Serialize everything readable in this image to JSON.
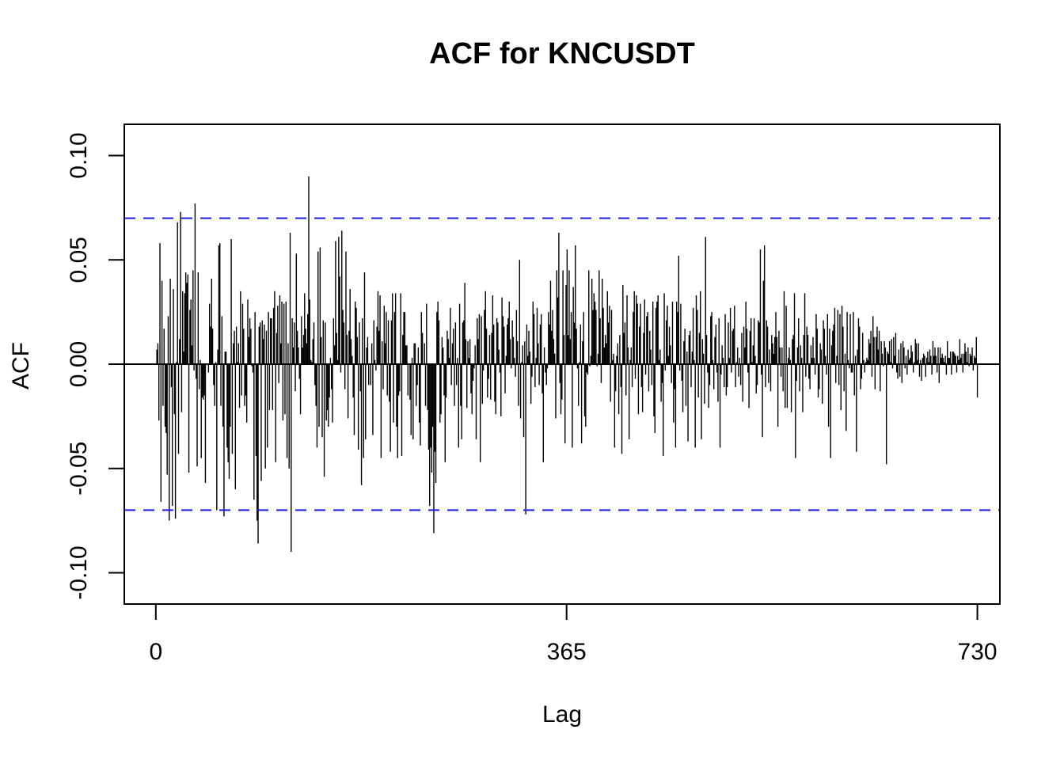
{
  "chart_data": {
    "type": "bar",
    "subtype": "acf",
    "title": "ACF for KNCUSDT",
    "xlabel": "Lag",
    "ylabel": "ACF",
    "xlim": [
      -28,
      750
    ],
    "ylim": [
      -0.115,
      0.115
    ],
    "x_ticks": [
      {
        "value": 0,
        "label": "0"
      },
      {
        "value": 365,
        "label": "365"
      },
      {
        "value": 730,
        "label": "730"
      }
    ],
    "y_ticks": [
      {
        "value": -0.1,
        "label": "-0.10"
      },
      {
        "value": -0.05,
        "label": "-0.05"
      },
      {
        "value": 0.0,
        "label": "0.00"
      },
      {
        "value": 0.05,
        "label": "0.05"
      },
      {
        "value": 0.1,
        "label": "0.10"
      }
    ],
    "confidence_bound": 0.07,
    "grid": false,
    "legend": "none",
    "max_lag": 730,
    "acf": [
      0.0,
      0.007,
      0.01,
      -0.027,
      0.058,
      -0.066,
      0.04,
      -0.02,
      0.017,
      -0.03,
      -0.033,
      -0.053,
      0.023,
      -0.075,
      0.041,
      -0.011,
      -0.068,
      0.036,
      -0.024,
      -0.074,
      0.001,
      0.068,
      -0.043,
      0.012,
      0.073,
      -0.023,
      0.035,
      0.006,
      0.034,
      0.044,
      0.039,
      0.043,
      -0.052,
      0.026,
      0.031,
      0.009,
      0.045,
      -0.003,
      0.077,
      -0.007,
      -0.049,
      0.044,
      -0.012,
      0.002,
      -0.045,
      -0.016,
      -0.017,
      -0.015,
      -0.057,
      0.0,
      0.0,
      -0.004,
      0.029,
      0.018,
      0.041,
      0.017,
      -0.01,
      -0.02,
      0.001,
      -0.07,
      0.007,
      0.057,
      0.058,
      -0.02,
      0.023,
      -0.03,
      -0.073,
      0.006,
      0.006,
      -0.04,
      -0.047,
      -0.055,
      -0.03,
      0.06,
      -0.043,
      0.01,
      0.016,
      -0.06,
      0.018,
      0.001,
      0.01,
      -0.021,
      0.035,
      -0.015,
      0.029,
      0.017,
      -0.02,
      -0.015,
      -0.028,
      0.031,
      0.013,
      0.022,
      0.017,
      -0.001,
      -0.004,
      -0.065,
      0.025,
      -0.044,
      -0.075,
      -0.086,
      0.018,
      0.02,
      -0.056,
      0.021,
      0.012,
      0.019,
      -0.05,
      0.016,
      -0.04,
      0.025,
      -0.022,
      0.022,
      0.022,
      -0.022,
      0.027,
      0.035,
      -0.047,
      0.015,
      0.028,
      -0.009,
      0.033,
      0.01,
      0.03,
      -0.027,
      0.029,
      -0.024,
      0.03,
      -0.045,
      0.01,
      -0.05,
      0.063,
      -0.09,
      0.022,
      0.008,
      0.02,
      -0.013,
      0.053,
      0.016,
      0.008,
      -0.007,
      -0.024,
      0.023,
      0.008,
      0.014,
      0.034,
      0.017,
      0.01,
      0.024,
      0.09,
      0.031,
      0.002,
      0.001,
      0.012,
      0.02,
      -0.01,
      -0.02,
      -0.04,
      0.054,
      -0.03,
      0.056,
      0.013,
      -0.035,
      0.021,
      -0.054,
      0.02,
      -0.027,
      -0.022,
      -0.03,
      -0.016,
      0.003,
      -0.012,
      -0.028,
      0.022,
      0.009,
      0.059,
      0.015,
      0.002,
      0.061,
      0.042,
      -0.004,
      0.064,
      0.026,
      0.02,
      -0.012,
      0.054,
      0.014,
      -0.026,
      0.016,
      0.036,
      0.012,
      0.004,
      -0.016,
      -0.034,
      0.03,
      0.027,
      0.013,
      -0.041,
      0.02,
      -0.013,
      -0.058,
      0.022,
      -0.045,
      0.044,
      -0.036,
      0.008,
      0.013,
      -0.01,
      0.0,
      -0.01,
      0.01,
      -0.034,
      0.021,
      0.002,
      -0.003,
      0.018,
      0.035,
      0.016,
      0.033,
      -0.045,
      0.011,
      -0.012,
      0.028,
      0.01,
      0.025,
      -0.015,
      0.021,
      -0.018,
      -0.042,
      0.021,
      0.034,
      -0.028,
      0.025,
      0.034,
      -0.03,
      -0.045,
      -0.015,
      -0.013,
      0.034,
      -0.044,
      0.014,
      0.025,
      0.025,
      0.009,
      0.009,
      -0.015,
      0.0,
      -0.017,
      -0.034,
      0.003,
      -0.036,
      0.01,
      0.01,
      -0.02,
      -0.01,
      0.008,
      -0.028,
      -0.039,
      0.025,
      0.015,
      0.0,
      0.01,
      -0.02,
      0.029,
      -0.022,
      -0.041,
      -0.068,
      -0.04,
      -0.052,
      -0.03,
      -0.081,
      -0.042,
      -0.057,
      0.025,
      0.03,
      0.021,
      -0.028,
      -0.024,
      0.013,
      0.008,
      -0.015,
      -0.047,
      -0.016,
      0.016,
      0.012,
      0.003,
      0.027,
      -0.01,
      0.01,
      0.017,
      -0.02,
      0.02,
      -0.01,
      0.003,
      -0.04,
      0.029,
      -0.02,
      -0.036,
      0.02,
      0.021,
      0.039,
      0.012,
      -0.021,
      0.011,
      0.003,
      0.012,
      -0.014,
      -0.024,
      -0.008,
      -0.002,
      0.009,
      -0.036,
      0.022,
      0.012,
      0.024,
      -0.047,
      0.023,
      -0.019,
      -0.003,
      0.026,
      0.035,
      0.017,
      -0.016,
      -0.007,
      0.014,
      -0.017,
      0.015,
      0.033,
      0.019,
      -0.018,
      -0.024,
      0.022,
      0.02,
      0.007,
      -0.004,
      -0.025,
      0.032,
      0.023,
      0.018,
      -0.014,
      0.004,
      0.019,
      0.022,
      0.03,
      0.012,
      -0.002,
      0.021,
      0.013,
      0.003,
      -0.006,
      0.026,
      0.011,
      -0.02,
      0.05,
      -0.026,
      0.001,
      0.009,
      -0.035,
      0.011,
      -0.072,
      0.019,
      0.004,
      0.016,
      0.006,
      -0.019,
      -0.006,
      0.03,
      0.024,
      -0.011,
      0.003,
      0.027,
      0.01,
      -0.01,
      0.019,
      0.024,
      -0.014,
      -0.047,
      0.008,
      -0.004,
      -0.01,
      -0.002,
      0.025,
      0.019,
      0.04,
      0.016,
      0.026,
      0.012,
      0.005,
      -0.026,
      0.045,
      0.032,
      0.063,
      -0.009,
      -0.024,
      -0.017,
      0.045,
      0.014,
      -0.038,
      0.038,
      0.055,
      0.014,
      0.045,
      0.012,
      0.025,
      -0.04,
      0.037,
      0.02,
      0.057,
      0.017,
      -0.002,
      -0.02,
      0.001,
      0.019,
      -0.038,
      0.011,
      0.025,
      -0.025,
      -0.03,
      -0.004,
      -0.005,
      0.045,
      -0.001,
      0.004,
      0.041,
      0.026,
      0.034,
      0.03,
      0.026,
      -0.001,
      0.005,
      0.045,
      0.022,
      -0.009,
      0.041,
      0.027,
      0.008,
      0.014,
      0.01,
      0.035,
      0.02,
      0.028,
      -0.018,
      0.026,
      0.002,
      0.005,
      -0.04,
      -0.013,
      0.004,
      0.01,
      -0.024,
      0.014,
      -0.011,
      -0.043,
      0.038,
      0.015,
      0.02,
      -0.015,
      0.033,
      0.008,
      -0.036,
      0.002,
      0.008,
      -0.011,
      0.025,
      0.035,
      -0.007,
      0.033,
      0.029,
      -0.024,
      0.018,
      0.029,
      -0.011,
      -0.023,
      0.015,
      0.031,
      -0.005,
      0.023,
      0.025,
      -0.013,
      0.016,
      0.007,
      -0.01,
      0.03,
      -0.025,
      -0.033,
      0.027,
      0.03,
      0.033,
      0.002,
      0.007,
      -0.018,
      -0.009,
      -0.044,
      0.034,
      -0.003,
      0.021,
      0.028,
      0.004,
      0.018,
      0.009,
      -0.009,
      0.03,
      -0.028,
      -0.012,
      -0.04,
      0.03,
      0.025,
      0.052,
      -0.003,
      0.029,
      -0.008,
      -0.023,
      0.011,
      0.017,
      -0.02,
      0.006,
      -0.037,
      0.014,
      0.016,
      -0.011,
      0.006,
      0.027,
      0.002,
      -0.04,
      0.033,
      0.026,
      -0.016,
      0.015,
      0.035,
      -0.036,
      0.012,
      0.005,
      -0.019,
      0.061,
      0.014,
      -0.004,
      -0.021,
      -0.01,
      0.023,
      0.025,
      0.002,
      -0.012,
      0.013,
      0.019,
      -0.004,
      -0.018,
      0.022,
      -0.04,
      -0.005,
      0.009,
      0.003,
      -0.011,
      0.024,
      -0.015,
      -0.011,
      0.02,
      0.003,
      0.027,
      -0.004,
      0.016,
      0.017,
      0.028,
      -0.011,
      0.001,
      0.008,
      -0.006,
      0.003,
      -0.01,
      0.015,
      -0.018,
      0.018,
      0.008,
      0.03,
      0.017,
      -0.004,
      -0.021,
      0.016,
      0.022,
      0.001,
      0.009,
      0.022,
      0.004,
      -0.014,
      -0.01,
      0.021,
      0.02,
      0.055,
      -0.005,
      -0.035,
      0.04,
      0.057,
      -0.011,
      0.021,
      0.018,
      -0.009,
      0.007,
      -0.013,
      0.014,
      0.01,
      0.005,
      0.013,
      0.025,
      0.013,
      -0.03,
      0.016,
      0.008,
      -0.006,
      0.008,
      -0.013,
      0.035,
      -0.021,
      0.028,
      -0.021,
      0.003,
      0.008,
      0.002,
      -0.023,
      0.012,
      0.014,
      0.034,
      -0.045,
      -0.008,
      0.008,
      0.022,
      -0.013,
      0.009,
      0.003,
      -0.023,
      0.014,
      0.034,
      -0.006,
      0.018,
      0.014,
      -0.007,
      -0.012,
      0.009,
      0.003,
      0.013,
      0.003,
      -0.005,
      0.024,
      0.017,
      -0.016,
      -0.012,
      0.01,
      0.007,
      -0.019,
      0.021,
      0.017,
      0.004,
      -0.005,
      0.024,
      -0.03,
      0.017,
      -0.045,
      0.009,
      0.016,
      0.019,
      0.027,
      -0.009,
      0.004,
      0.026,
      -0.01,
      0.024,
      -0.022,
      0.028,
      0.018,
      -0.013,
      0.005,
      -0.032,
      0.025,
      0.002,
      -0.002,
      0.024,
      -0.004,
      -0.004,
      0.025,
      -0.015,
      0.004,
      -0.042,
      0.007,
      0.022,
      0.018,
      -0.012,
      -0.007,
      0.015,
      0.002,
      -0.004,
      0.001,
      0.003,
      0.002,
      0.012,
      0.01,
      0.016,
      -0.006,
      0.023,
      0.013,
      -0.012,
      0.013,
      0.018,
      0.007,
      0.016,
      -0.013,
      0.011,
      0.005,
      -0.001,
      0.011,
      0.008,
      -0.048,
      0.006,
      0.005,
      0.011,
      0.001,
      0.012,
      -0.002,
      0.013,
      0.004,
      0.015,
      -0.004,
      -0.007,
      0.007,
      -0.006,
      0.01,
      -0.009,
      0.011,
      0.008,
      -0.002,
      0.004,
      -0.005,
      0.007,
      0.002,
      0.003,
      0.009,
      0.006,
      -0.004,
      0.001,
      0.012,
      0.01,
      0.002,
      0.01,
      -0.006,
      0.002,
      -0.008,
      0.003,
      0.005,
      0.004,
      -0.006,
      0.003,
      0.006,
      0.001,
      0.007,
      0.004,
      -0.005,
      0.011,
      0.004,
      0.008,
      0.004,
      -0.004,
      0.008,
      -0.009,
      0.008,
      0.003,
      0.005,
      0.003,
      0.001,
      0.004,
      -0.005,
      0.011,
      0.003,
      0.003,
      0.006,
      -0.005,
      0.006,
      0.006,
      0.005,
      0.004,
      -0.004,
      0.004,
      0.002,
      0.012,
      0.003,
      0.005,
      -0.004,
      0.005,
      0.01,
      0.006,
      0.001,
      0.008,
      -0.001,
      0.005,
      0.004,
      0.008,
      -0.003,
      0.004,
      0.003,
      0.013,
      -0.016
    ]
  }
}
